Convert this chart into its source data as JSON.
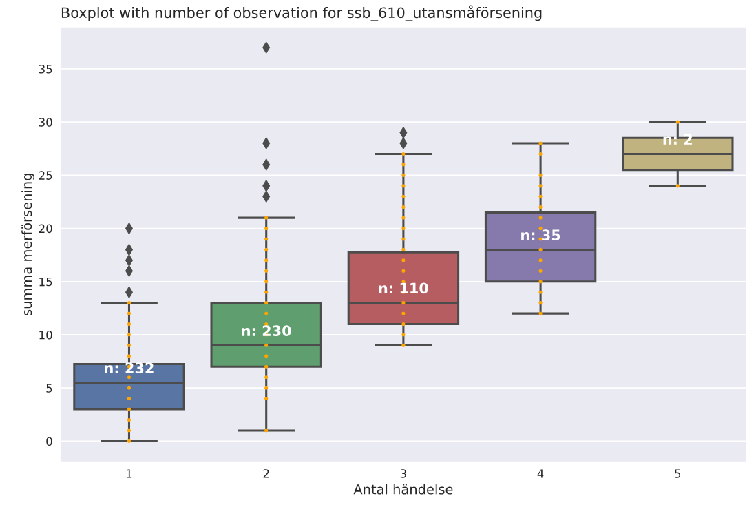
{
  "chart_data": {
    "type": "box",
    "title": "Boxplot with number of observation for ssb_610_utansmåförsening",
    "xlabel": "Antal händelse",
    "ylabel": "summa merförsening",
    "categories": [
      "1",
      "2",
      "3",
      "4",
      "5"
    ],
    "colors": [
      "#5975a4",
      "#5f9e6e",
      "#b55d60",
      "#857aab",
      "#c1b37f"
    ],
    "boxes": [
      {
        "low": 0,
        "q1": 3,
        "median": 5.5,
        "q3": 7.25,
        "high": 13,
        "outliers": [
          14,
          16,
          17,
          18,
          20
        ]
      },
      {
        "low": 1,
        "q1": 7,
        "median": 9,
        "q3": 13,
        "high": 21,
        "outliers": [
          23,
          24,
          26,
          28,
          37
        ]
      },
      {
        "low": 9,
        "q1": 11,
        "median": 13,
        "q3": 17.75,
        "high": 27,
        "outliers": [
          28,
          29
        ]
      },
      {
        "low": 12,
        "q1": 15,
        "median": 18,
        "q3": 21.5,
        "high": 28
      },
      {
        "low": 24,
        "q1": 25.5,
        "median": 27,
        "q3": 28.5,
        "high": 30
      }
    ],
    "series": [
      {
        "type": "scatter",
        "color": "#ffa500",
        "x": [
          "1",
          "1",
          "1",
          "1",
          "1",
          "1",
          "1",
          "1",
          "1",
          "1",
          "1",
          "1",
          "1",
          "1",
          "2",
          "2",
          "2",
          "2",
          "2",
          "2",
          "2",
          "2",
          "2",
          "2",
          "2",
          "2",
          "2",
          "2",
          "2",
          "2",
          "2",
          "2",
          "2",
          "3",
          "3",
          "3",
          "3",
          "3",
          "3",
          "3",
          "3",
          "3",
          "3",
          "3",
          "3",
          "3",
          "3",
          "3",
          "3",
          "3",
          "3",
          "3",
          "4",
          "4",
          "4",
          "4",
          "4",
          "4",
          "4",
          "4",
          "4",
          "4",
          "4",
          "4",
          "4",
          "4",
          "4",
          "4",
          "5",
          "5"
        ],
        "values": [
          0,
          1,
          2,
          3,
          4,
          5,
          6,
          7,
          8,
          9,
          10,
          11,
          12,
          13,
          1,
          4,
          5,
          6,
          7,
          8,
          9,
          10,
          11,
          12,
          13,
          14,
          15,
          16,
          17,
          18,
          19,
          20,
          21,
          9,
          10,
          11,
          12,
          13,
          14,
          15,
          16,
          17,
          18,
          19,
          20,
          21,
          22,
          23,
          24,
          25,
          26,
          27,
          12,
          13,
          14,
          15,
          16,
          17,
          18,
          19,
          20,
          21,
          22,
          23,
          24,
          25,
          27,
          28,
          24,
          30
        ]
      }
    ],
    "annotations": [
      "n: 232",
      "n: 230",
      "n: 110",
      "n: 35",
      "n: 2"
    ],
    "ylim": [
      -1.9,
      38.9
    ],
    "yticks": [
      0,
      5,
      10,
      15,
      20,
      25,
      30,
      35
    ],
    "grid": "y",
    "marker": "circle"
  }
}
